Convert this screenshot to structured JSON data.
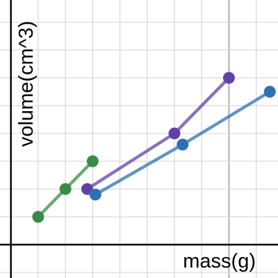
{
  "chart_data": {
    "type": "line",
    "title": "",
    "xlabel": "mass(g)",
    "ylabel": "volume(cm^3)",
    "xlim": [
      -0.4,
      9.8
    ],
    "ylim": [
      -1.2,
      8.8
    ],
    "grid": true,
    "legend": "none",
    "series": [
      {
        "color": "#388c46",
        "points": [
          [
            1,
            1
          ],
          [
            2,
            2
          ],
          [
            3,
            3
          ]
        ]
      },
      {
        "color": "#6042a6",
        "points": [
          [
            2.8,
            2
          ],
          [
            6,
            4
          ],
          [
            8,
            6
          ]
        ]
      },
      {
        "color": "#2d70b3",
        "points": [
          [
            3.1,
            1.8
          ],
          [
            6.3,
            3.6
          ],
          [
            9.5,
            5.5
          ]
        ]
      }
    ]
  }
}
